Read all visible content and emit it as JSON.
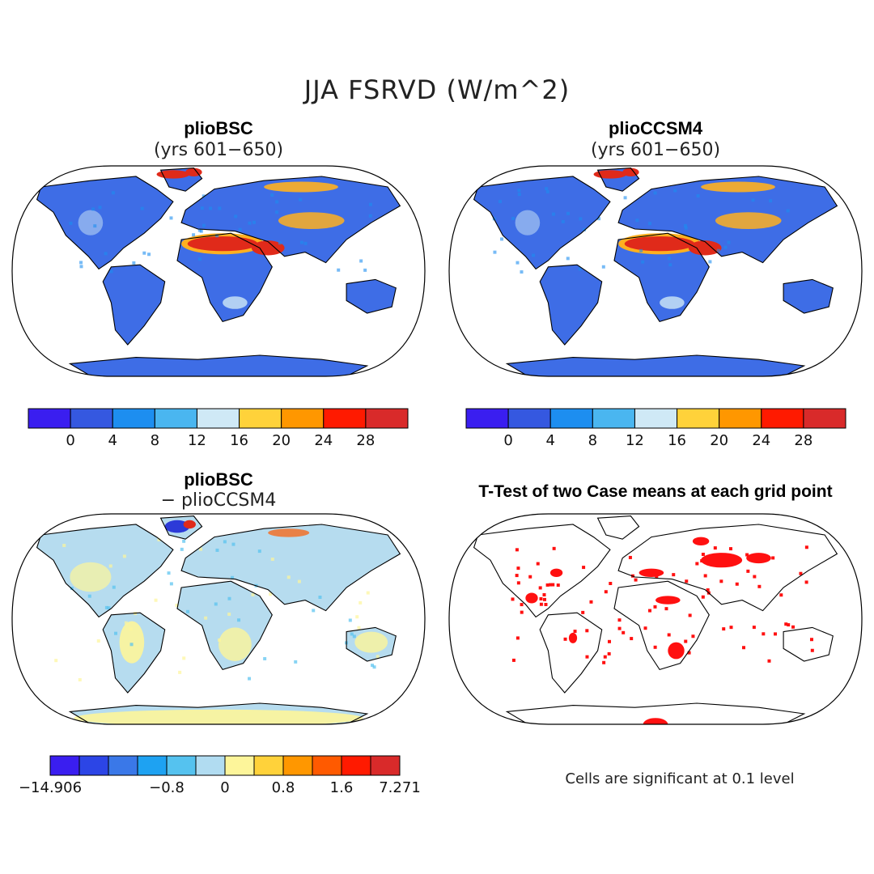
{
  "title": "JJA FSRVD (W/m^2)",
  "panels": [
    {
      "title": "plioBSC",
      "subtitle": "(yrs 601−650)"
    },
    {
      "title": "plioCCSM4",
      "subtitle": "(yrs 601−650)"
    },
    {
      "title": "plioBSC",
      "subtitle": "− plioCCSM4"
    },
    {
      "title": "T-Test of two Case means at each grid point",
      "subtitle": ""
    }
  ],
  "colorbars": {
    "absolute": {
      "colors": [
        "#3a1ef0",
        "#3558e0",
        "#1d8ef0",
        "#4ab6f0",
        "#cfe9f6",
        "#ffd23a",
        "#ff9700",
        "#ff1a00",
        "#d92a2a"
      ],
      "tick_labels": [
        "0",
        "4",
        "8",
        "12",
        "16",
        "20",
        "24",
        "28"
      ]
    },
    "difference": {
      "colors": [
        "#3a1ef0",
        "#2c45e6",
        "#3a78e8",
        "#1ea2f2",
        "#55c2ef",
        "#b1dcf1",
        "#fdf59a",
        "#ffd23a",
        "#ff9700",
        "#ff5a00",
        "#ff1a00",
        "#d92a2a"
      ],
      "tick_labels": [
        "−14.906",
        "−0.8",
        "0",
        "0.8",
        "1.6",
        "7.271"
      ]
    }
  },
  "note": "Cells are significant at 0.1 level",
  "map_colors": {
    "land_base": "#3e6de6",
    "desert": "#e02a1a",
    "warm": "#ffb020",
    "light": "#cfe9f6",
    "diff_base": "#b6dcef",
    "diff_pos": "#fdf59a",
    "diff_neg": "#2c3ad8",
    "sig": "#ff1010"
  }
}
